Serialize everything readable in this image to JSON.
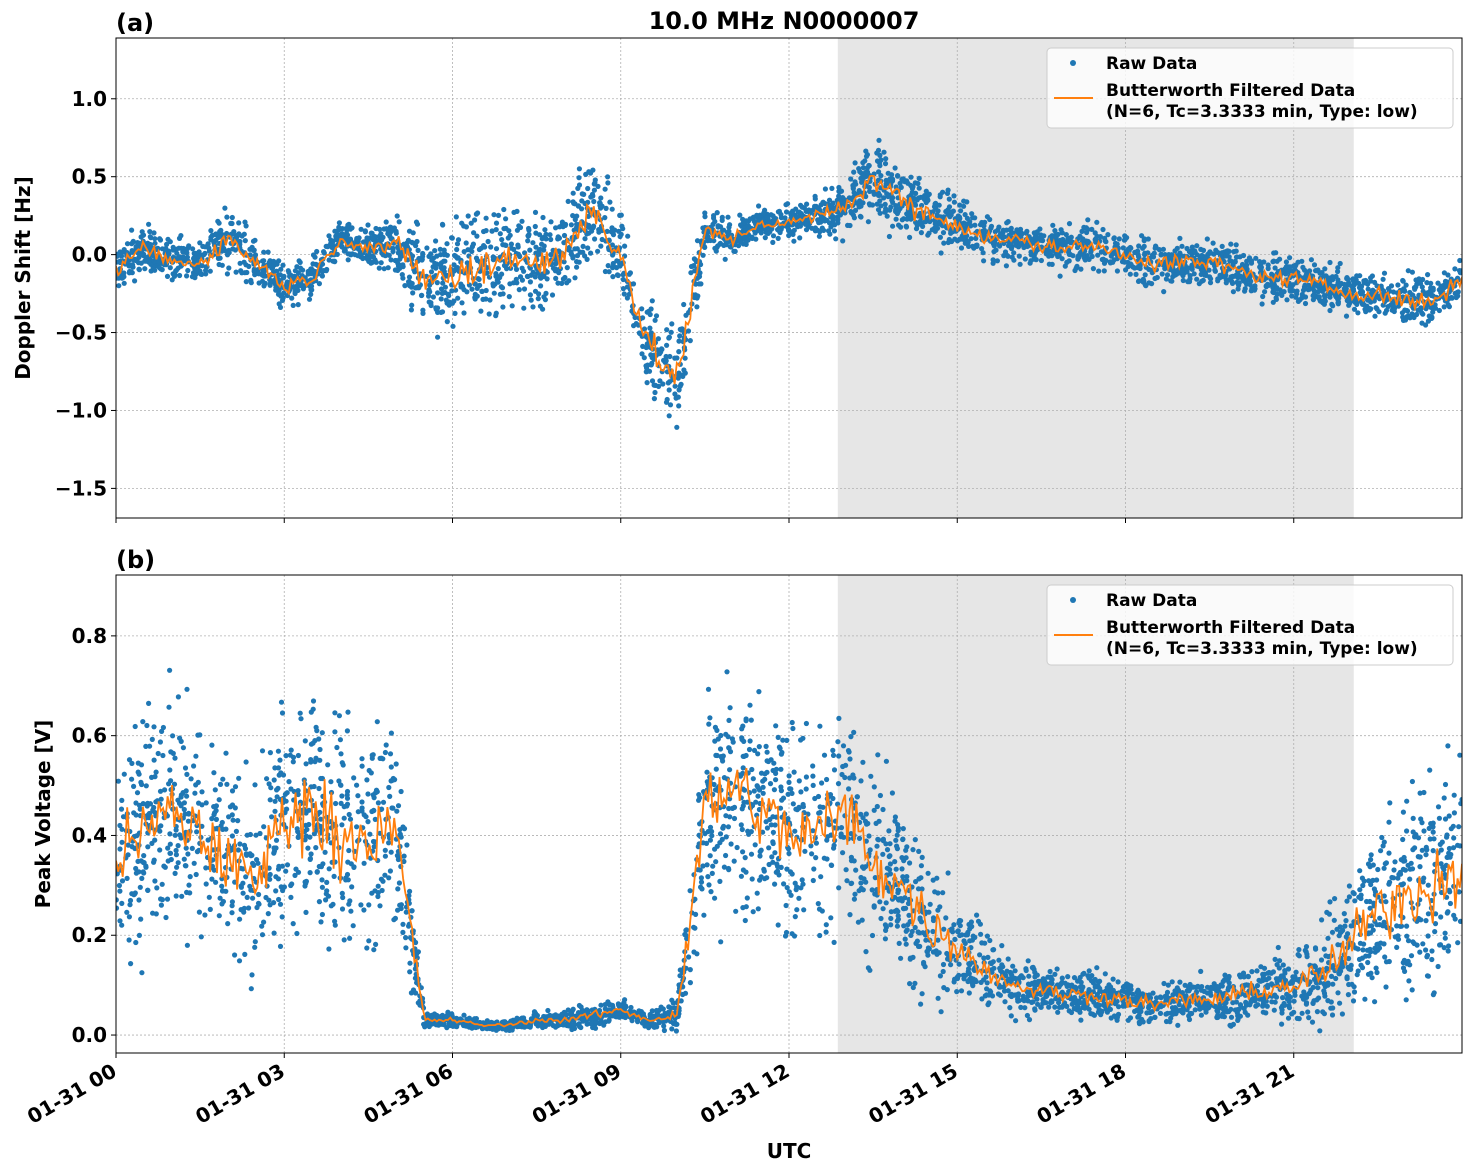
{
  "title": "10.0 MHz N0000007",
  "xlabel": "UTC",
  "x_tick_labels": [
    "01-31 00",
    "01-31 03",
    "01-31 06",
    "01-31 09",
    "01-31 12",
    "01-31 15",
    "01-31 18",
    "01-31 21"
  ],
  "colors": {
    "raw": "#1f77b4",
    "filtered": "#ff7f0e",
    "shade": "#e6e6e6"
  },
  "chart_data": [
    {
      "type": "scatter+line",
      "panel_label": "(a)",
      "ylabel": "Doppler Shift [Hz]",
      "x_unit": "hours UTC on 01-31",
      "xlim": [
        0,
        24
      ],
      "ylim": [
        -1.69,
        1.39
      ],
      "y_ticks": [
        1.0,
        0.5,
        0.0,
        -0.5,
        -1.0,
        -1.5
      ],
      "y_tick_labels": [
        "1.0",
        "0.5",
        "0.0",
        "−0.5",
        "−1.0",
        "−1.5"
      ],
      "grid": true,
      "shaded_span": [
        12.87,
        22.07
      ],
      "legend": {
        "placement": "upper-right",
        "raw": "Raw Data",
        "filtered_line1": "Butterworth Filtered Data",
        "filtered_line2": "(N=6, Tc=3.3333 min, Type: low)"
      },
      "x": [
        0,
        0.5,
        1,
        1.5,
        2,
        2.5,
        3,
        3.5,
        4,
        4.5,
        5,
        5.5,
        6,
        6.5,
        7,
        7.5,
        8,
        8.5,
        9,
        9.5,
        10,
        10.5,
        11,
        11.5,
        12,
        12.5,
        13,
        13.5,
        14,
        14.5,
        15,
        15.5,
        16,
        16.5,
        17,
        17.5,
        18,
        18.5,
        19,
        19.5,
        20,
        20.5,
        21,
        21.5,
        22,
        22.5,
        23,
        23.5,
        24
      ],
      "filtered": [
        -0.1,
        0.05,
        -0.05,
        -0.05,
        0.1,
        -0.05,
        -0.2,
        -0.15,
        0.1,
        0.05,
        0.05,
        -0.15,
        -0.15,
        -0.1,
        0.0,
        -0.05,
        0.0,
        0.3,
        0.0,
        -0.6,
        -0.8,
        0.15,
        0.1,
        0.2,
        0.2,
        0.25,
        0.3,
        0.5,
        0.35,
        0.25,
        0.2,
        0.1,
        0.1,
        0.05,
        0.05,
        0.05,
        0.0,
        -0.05,
        -0.05,
        -0.05,
        -0.1,
        -0.15,
        -0.15,
        -0.2,
        -0.25,
        -0.25,
        -0.3,
        -0.3,
        -0.15
      ],
      "raw_spread": [
        0.2,
        0.2,
        0.2,
        0.2,
        0.3,
        0.2,
        0.2,
        0.2,
        0.15,
        0.2,
        0.3,
        0.45,
        0.5,
        0.5,
        0.45,
        0.45,
        0.4,
        0.5,
        0.4,
        0.45,
        0.45,
        0.25,
        0.15,
        0.15,
        0.15,
        0.15,
        0.25,
        0.35,
        0.3,
        0.25,
        0.25,
        0.2,
        0.2,
        0.2,
        0.2,
        0.2,
        0.2,
        0.25,
        0.2,
        0.2,
        0.2,
        0.2,
        0.2,
        0.2,
        0.2,
        0.2,
        0.25,
        0.2,
        0.2
      ]
    },
    {
      "type": "scatter+line",
      "panel_label": "(b)",
      "ylabel": "Peak Voltage [V]",
      "x_unit": "hours UTC on 01-31",
      "xlim": [
        0,
        24
      ],
      "ylim": [
        -0.036,
        0.922
      ],
      "y_ticks": [
        0.0,
        0.2,
        0.4,
        0.6,
        0.8
      ],
      "y_tick_labels": [
        "0.0",
        "0.2",
        "0.4",
        "0.6",
        "0.8"
      ],
      "grid": true,
      "shaded_span": [
        12.87,
        22.07
      ],
      "legend": {
        "placement": "upper-right",
        "raw": "Raw Data",
        "filtered_line1": "Butterworth Filtered Data",
        "filtered_line2": "(N=6, Tc=3.3333 min, Type: low)"
      },
      "x": [
        0,
        0.5,
        1,
        1.5,
        2,
        2.5,
        3,
        3.5,
        4,
        4.5,
        5,
        5.5,
        6,
        6.5,
        7,
        7.5,
        8,
        8.5,
        9,
        9.5,
        10,
        10.5,
        11,
        11.5,
        12,
        12.5,
        13,
        13.5,
        14,
        14.5,
        15,
        15.5,
        16,
        16.5,
        17,
        17.5,
        18,
        18.5,
        19,
        19.5,
        20,
        20.5,
        21,
        21.5,
        22,
        22.5,
        23,
        23.5,
        24
      ],
      "filtered": [
        0.35,
        0.4,
        0.45,
        0.4,
        0.35,
        0.3,
        0.45,
        0.45,
        0.4,
        0.4,
        0.4,
        0.03,
        0.03,
        0.02,
        0.02,
        0.03,
        0.03,
        0.04,
        0.05,
        0.03,
        0.04,
        0.45,
        0.5,
        0.45,
        0.4,
        0.4,
        0.45,
        0.35,
        0.3,
        0.22,
        0.18,
        0.13,
        0.1,
        0.09,
        0.08,
        0.08,
        0.07,
        0.06,
        0.07,
        0.07,
        0.08,
        0.09,
        0.1,
        0.12,
        0.18,
        0.25,
        0.28,
        0.3,
        0.35
      ],
      "raw_spread": [
        0.3,
        0.32,
        0.32,
        0.32,
        0.3,
        0.3,
        0.32,
        0.32,
        0.32,
        0.3,
        0.3,
        0.02,
        0.02,
        0.015,
        0.015,
        0.02,
        0.025,
        0.03,
        0.03,
        0.02,
        0.05,
        0.32,
        0.33,
        0.33,
        0.3,
        0.3,
        0.32,
        0.3,
        0.25,
        0.2,
        0.15,
        0.1,
        0.08,
        0.07,
        0.07,
        0.07,
        0.06,
        0.06,
        0.06,
        0.07,
        0.08,
        0.08,
        0.1,
        0.14,
        0.2,
        0.25,
        0.28,
        0.3,
        0.35
      ]
    }
  ]
}
